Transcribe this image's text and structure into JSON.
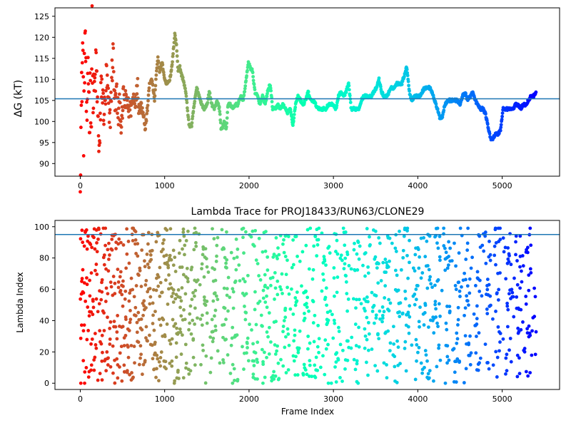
{
  "chart_data": [
    {
      "type": "scatter",
      "title": "",
      "xlabel": "",
      "ylabel": "ΔG (kT)",
      "xlim": [
        -300,
        5680
      ],
      "ylim": [
        87,
        127
      ],
      "xticks": [
        "0",
        "1000",
        "2000",
        "3000",
        "4000",
        "5000"
      ],
      "yticks": [
        "90",
        "95",
        "100",
        "105",
        "110",
        "115",
        "120",
        "125"
      ],
      "reference_line": 105.4,
      "points_x_range": [
        0,
        5400
      ],
      "colormap": "rainbow",
      "grid": false,
      "trace_points": [
        [
          0,
          90
        ],
        [
          10,
          100
        ],
        [
          20,
          110
        ],
        [
          30,
          120
        ],
        [
          40,
          98
        ],
        [
          50,
          113
        ],
        [
          60,
          122
        ],
        [
          70,
          106
        ],
        [
          80,
          94
        ],
        [
          90,
          117
        ],
        [
          100,
          108
        ],
        [
          110,
          100
        ],
        [
          120,
          112
        ],
        [
          130,
          96
        ],
        [
          140,
          122
        ],
        [
          150,
          104
        ],
        [
          170,
          108
        ],
        [
          190,
          114
        ],
        [
          210,
          99
        ],
        [
          230,
          93
        ],
        [
          250,
          110
        ],
        [
          270,
          104
        ],
        [
          290,
          102
        ],
        [
          310,
          111
        ],
        [
          330,
          105
        ],
        [
          350,
          99
        ],
        [
          370,
          109
        ],
        [
          390,
          117
        ],
        [
          410,
          103
        ],
        [
          430,
          107
        ],
        [
          450,
          101
        ],
        [
          470,
          104
        ],
        [
          490,
          98
        ],
        [
          510,
          106
        ],
        [
          530,
          104
        ],
        [
          550,
          106
        ],
        [
          570,
          103
        ],
        [
          600,
          103
        ],
        [
          630,
          106
        ],
        [
          660,
          105
        ],
        [
          680,
          110
        ],
        [
          690,
          103
        ],
        [
          720,
          104
        ],
        [
          750,
          102
        ],
        [
          770,
          98
        ],
        [
          800,
          104
        ],
        [
          820,
          109
        ],
        [
          850,
          110
        ],
        [
          880,
          105
        ],
        [
          900,
          111
        ],
        [
          920,
          115
        ],
        [
          940,
          112
        ],
        [
          970,
          114
        ],
        [
          1000,
          110
        ],
        [
          1020,
          109
        ],
        [
          1060,
          110
        ],
        [
          1080,
          112
        ],
        [
          1100,
          116
        ],
        [
          1120,
          121
        ],
        [
          1140,
          118
        ],
        [
          1160,
          112
        ],
        [
          1180,
          113
        ],
        [
          1200,
          111
        ],
        [
          1220,
          110
        ],
        [
          1250,
          107
        ],
        [
          1270,
          103
        ],
        [
          1290,
          99
        ],
        [
          1320,
          99
        ],
        [
          1350,
          104
        ],
        [
          1380,
          108
        ],
        [
          1410,
          106
        ],
        [
          1440,
          104
        ],
        [
          1470,
          103
        ],
        [
          1500,
          104
        ],
        [
          1530,
          107
        ],
        [
          1560,
          104
        ],
        [
          1590,
          103
        ],
        [
          1620,
          105
        ],
        [
          1650,
          103
        ],
        [
          1670,
          98
        ],
        [
          1690,
          99
        ],
        [
          1710,
          100
        ],
        [
          1730,
          98
        ],
        [
          1750,
          104
        ],
        [
          1780,
          104
        ],
        [
          1810,
          103
        ],
        [
          1840,
          104
        ],
        [
          1870,
          104
        ],
        [
          1900,
          106
        ],
        [
          1930,
          105
        ],
        [
          1960,
          109
        ],
        [
          1990,
          114
        ],
        [
          2010,
          113
        ],
        [
          2040,
          112
        ],
        [
          2070,
          107
        ],
        [
          2100,
          106
        ],
        [
          2130,
          104
        ],
        [
          2160,
          106
        ],
        [
          2190,
          104
        ],
        [
          2220,
          107
        ],
        [
          2250,
          109
        ],
        [
          2280,
          103
        ],
        [
          2310,
          103
        ],
        [
          2340,
          104
        ],
        [
          2370,
          103
        ],
        [
          2400,
          104
        ],
        [
          2430,
          103
        ],
        [
          2460,
          102
        ],
        [
          2490,
          103
        ],
        [
          2520,
          99
        ],
        [
          2550,
          104
        ],
        [
          2580,
          106
        ],
        [
          2610,
          105
        ],
        [
          2640,
          104
        ],
        [
          2670,
          105
        ],
        [
          2700,
          107
        ],
        [
          2730,
          105
        ],
        [
          2760,
          105
        ],
        [
          2790,
          104
        ],
        [
          2820,
          103
        ],
        [
          2850,
          103
        ],
        [
          2880,
          103
        ],
        [
          2910,
          103
        ],
        [
          2940,
          104
        ],
        [
          2970,
          104
        ],
        [
          3000,
          104
        ],
        [
          3030,
          103
        ],
        [
          3060,
          106
        ],
        [
          3090,
          107
        ],
        [
          3120,
          106
        ],
        [
          3150,
          107
        ],
        [
          3180,
          109
        ],
        [
          3210,
          103
        ],
        [
          3240,
          103
        ],
        [
          3270,
          103
        ],
        [
          3300,
          103
        ],
        [
          3330,
          105
        ],
        [
          3360,
          106
        ],
        [
          3390,
          106
        ],
        [
          3420,
          106
        ],
        [
          3450,
          106
        ],
        [
          3480,
          107
        ],
        [
          3510,
          108
        ],
        [
          3540,
          110
        ],
        [
          3570,
          107
        ],
        [
          3600,
          106
        ],
        [
          3630,
          106
        ],
        [
          3660,
          107
        ],
        [
          3690,
          108
        ],
        [
          3720,
          108
        ],
        [
          3750,
          109
        ],
        [
          3780,
          109
        ],
        [
          3810,
          109
        ],
        [
          3840,
          111
        ],
        [
          3870,
          113
        ],
        [
          3900,
          107
        ],
        [
          3930,
          105
        ],
        [
          3960,
          106
        ],
        [
          3990,
          106
        ],
        [
          4020,
          106
        ],
        [
          4050,
          107
        ],
        [
          4080,
          108
        ],
        [
          4110,
          108
        ],
        [
          4140,
          108
        ],
        [
          4170,
          107
        ],
        [
          4200,
          105
        ],
        [
          4230,
          103
        ],
        [
          4260,
          101
        ],
        [
          4290,
          101
        ],
        [
          4320,
          104
        ],
        [
          4350,
          105
        ],
        [
          4380,
          105
        ],
        [
          4410,
          105
        ],
        [
          4440,
          105
        ],
        [
          4470,
          105
        ],
        [
          4500,
          104
        ],
        [
          4530,
          106
        ],
        [
          4560,
          107
        ],
        [
          4590,
          105
        ],
        [
          4620,
          106
        ],
        [
          4650,
          107
        ],
        [
          4680,
          105
        ],
        [
          4710,
          104
        ],
        [
          4740,
          103
        ],
        [
          4770,
          103
        ],
        [
          4800,
          102
        ],
        [
          4830,
          99
        ],
        [
          4860,
          96
        ],
        [
          4890,
          96
        ],
        [
          4920,
          97
        ],
        [
          4950,
          97
        ],
        [
          4980,
          98
        ],
        [
          5010,
          103
        ],
        [
          5040,
          103
        ],
        [
          5070,
          103
        ],
        [
          5100,
          103
        ],
        [
          5130,
          103
        ],
        [
          5160,
          104
        ],
        [
          5190,
          104
        ],
        [
          5220,
          103
        ],
        [
          5250,
          104
        ],
        [
          5280,
          104
        ],
        [
          5310,
          105
        ],
        [
          5340,
          106
        ],
        [
          5370,
          106
        ],
        [
          5400,
          107
        ]
      ]
    },
    {
      "type": "scatter",
      "title": "Lambda Trace for PROJ18433/RUN63/CLONE29",
      "xlabel": "Frame Index",
      "ylabel": "Lambda Index",
      "xlim": [
        -300,
        5680
      ],
      "ylim": [
        -4,
        104
      ],
      "xticks": [
        "0",
        "1000",
        "2000",
        "3000",
        "4000",
        "5000"
      ],
      "yticks": [
        "0",
        "20",
        "40",
        "60",
        "80",
        "100"
      ],
      "reference_line": 95,
      "points_x_range": [
        0,
        5400
      ],
      "y_range": [
        0,
        99
      ],
      "colormap": "rainbow",
      "grid": false
    }
  ]
}
